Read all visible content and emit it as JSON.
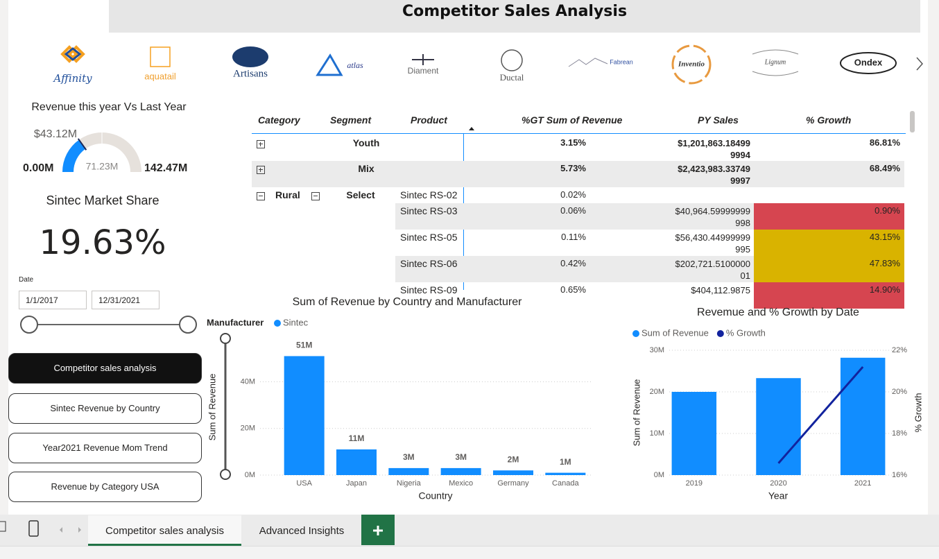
{
  "header": {
    "title": "Competitor Sales Analysis"
  },
  "logos": [
    "Affinity",
    "aquatail",
    "Artisans",
    "atlas",
    "Diament",
    "Ductal",
    "Fabrean",
    "Inventio",
    "Lignum",
    "Ondex"
  ],
  "gauge": {
    "title": "Revenue this year Vs Last Year",
    "value": {
      "value": 43.12,
      "label": "$43.12M"
    },
    "min": {
      "value": 0,
      "label": "0.00M"
    },
    "target": {
      "value": 71.23,
      "label": "71.23M"
    },
    "max": {
      "value": 142.47,
      "label": "142.47M"
    },
    "color": "#118dff"
  },
  "kpi": {
    "title": "Sintec Market Share",
    "value": "19.63%"
  },
  "date_slicer": {
    "label": "Date",
    "start": "1/1/2017",
    "end": "12/31/2021"
  },
  "nav_buttons": [
    "Competitor sales analysis",
    "Sintec Revenue by Country",
    "Year2021 Revenue Mom Trend",
    "Revenue by Category USA"
  ],
  "table": {
    "columns": [
      "Category",
      "Segment",
      "Product",
      "%GT Sum of Revenue",
      "PY Sales",
      "% Growth"
    ],
    "rows": [
      {
        "segment": "Youth",
        "gt": "3.15%",
        "py": "$1,201,863.184999994",
        "growth": "86.81%"
      },
      {
        "segment": "Mix",
        "gt": "5.73%",
        "py": "$2,423,983.337499997",
        "growth": "68.49%"
      },
      {
        "category": "Rural",
        "segment": "Select",
        "product": "Sintec RS-02",
        "gt": "0.02%"
      },
      {
        "product": "Sintec RS-03",
        "gt": "0.06%",
        "py": "$40,964.59999999998",
        "growth": "0.90%",
        "color": "#d64550"
      },
      {
        "product": "Sintec RS-05",
        "gt": "0.11%",
        "py": "$56,430.44999999995",
        "growth": "43.15%",
        "color": "#d9b300"
      },
      {
        "product": "Sintec RS-06",
        "gt": "0.42%",
        "py": "$202,721.510000001",
        "growth": "47.83%",
        "color": "#d9b300"
      },
      {
        "product": "Sintec RS-09",
        "gt": "0.65%",
        "py": "$404,112.9875",
        "growth": "14.90%",
        "color": "#d64550"
      }
    ]
  },
  "chart_data": [
    {
      "type": "bar",
      "title": "Sum of Revenue by Country and Manufacturer",
      "legend_title": "Manufacturer",
      "categories": [
        "USA",
        "Japan",
        "Nigeria",
        "Mexico",
        "Germany",
        "Canada"
      ],
      "series": [
        {
          "name": "Sintec",
          "color": "#118dff",
          "values": [
            51,
            11,
            3,
            3,
            2,
            1
          ],
          "value_labels": [
            "51M",
            "11M",
            "3M",
            "3M",
            "2M",
            "1M"
          ]
        }
      ],
      "ylim": [
        0,
        55
      ],
      "yticks": [
        {
          "value": 0,
          "label": "0M"
        },
        {
          "value": 20,
          "label": "20M"
        },
        {
          "value": 40,
          "label": "40M"
        }
      ],
      "xlabel": "Country",
      "ylabel": "Sum of Revenue",
      "grid": true
    },
    {
      "type": "combo",
      "title": "Revemue and % Growth by Date",
      "categories": [
        "2019",
        "2020",
        "2021"
      ],
      "series": [
        {
          "name": "Sum of Revenue",
          "type": "bar",
          "color": "#118dff",
          "values": [
            20,
            23.3,
            28.2
          ]
        },
        {
          "name": "% Growth",
          "type": "line",
          "axis": "y2",
          "color": "#12239e",
          "values": [
            null,
            16.57,
            21.2
          ]
        }
      ],
      "ylim": [
        0,
        30
      ],
      "yticks": [
        {
          "value": 0,
          "label": "0M"
        },
        {
          "value": 10,
          "label": "10M"
        },
        {
          "value": 20,
          "label": "20M"
        },
        {
          "value": 30,
          "label": "30M"
        }
      ],
      "y2lim": [
        16,
        22
      ],
      "y2ticks": [
        {
          "value": 16,
          "label": "16%"
        },
        {
          "value": 18,
          "label": "18%"
        },
        {
          "value": 20,
          "label": "20%"
        },
        {
          "value": 22,
          "label": "22%"
        }
      ],
      "xlabel": "Year",
      "ylabel": "Sum of Revenue",
      "y2label": "% Growth",
      "grid": true
    }
  ],
  "tabs": [
    "Competitor sales analysis",
    "Advanced Insights"
  ]
}
